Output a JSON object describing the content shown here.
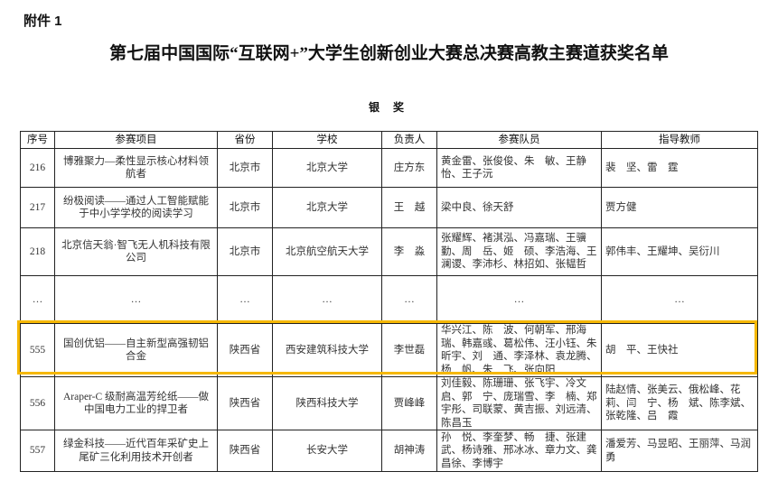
{
  "attachment_label": "附件 1",
  "title": "第七届中国国际“互联网+”大学生创新创业大赛总决赛高教主赛道获奖名单",
  "award_level": "银 奖",
  "highlight_color": "#F5B700",
  "table": {
    "headers": [
      "序号",
      "参赛项目",
      "省份",
      "学校",
      "负责人",
      "参赛队员",
      "指导教师"
    ],
    "rows": [
      [
        "216",
        "博雅聚力—柔性显示核心材料领航者",
        "北京市",
        "北京大学",
        "庄方东",
        "黄金雷、张俊俊、朱　敏、王静怡、王子沅",
        "裴　坚、雷　霆"
      ],
      [
        "217",
        "纷极阅读——通过人工智能赋能于中小学学校的阅读学习",
        "北京市",
        "北京大学",
        "王　越",
        "梁中良、徐天舒",
        "贾方健"
      ],
      [
        "218",
        "北京信天翁·智飞无人机科技有限公司",
        "北京市",
        "北京航空航天大学",
        "李　淼",
        "张耀辉、褚淇泓、冯嘉瑞、王骥勤、周　岳、姬　硕、李浩海、王澜谡、李沛杉、林招如、张韫哲",
        "郭伟丰、王耀坤、吴衍川"
      ],
      [
        "…",
        "…",
        "…",
        "…",
        "…",
        "…",
        "…"
      ],
      [
        "555",
        "国创优铝——自主新型高强韧铝合金",
        "陕西省",
        "西安建筑科技大学",
        "李世磊",
        "华兴江、陈　波、何朝军、邢海瑞、韩嘉彧、葛松伟、汪小钰、朱昕宇、刘　通、李泽林、袁龙腾、杨　帆、朱　飞、张向阳",
        "胡　平、王快社"
      ],
      [
        "556",
        "Araper-C 级耐高温芳纶纸——做中国电力工业的捍卫者",
        "陕西省",
        "陕西科技大学",
        "贾峰峰",
        "刘佳毅、陈珊珊、张飞宇、冷文启、郭　宁、庞瑞雪、李　楠、郑宇彤、司联蒙、黄吉振、刘远清、陈昌玉",
        "陆赵情、张美云、俄松峰、花　莉、闫　宁、杨　斌、陈李斌、张乾隆、吕　霞"
      ],
      [
        "557",
        "绿金科技——近代百年采矿史上尾矿三化利用技术开创者",
        "陕西省",
        "长安大学",
        "胡神涛",
        "孙　悦、李奎梦、畅　捷、张建武、杨诗雅、邢冰冰、章力文、龚昌徐、李博宇",
        "潘爱芳、马昱昭、王丽萍、马润勇"
      ]
    ]
  }
}
